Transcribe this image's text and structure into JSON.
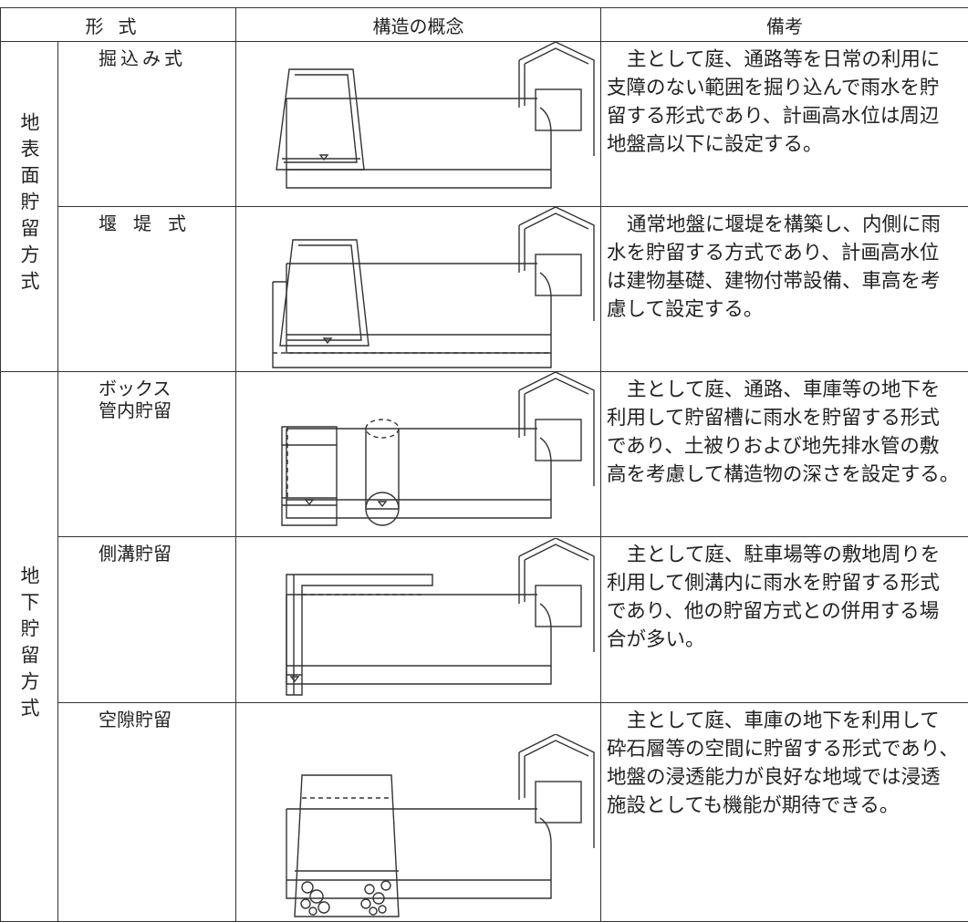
{
  "header": {
    "type": "形式",
    "structure": "構造の概念",
    "remarks": "備考"
  },
  "groups": [
    {
      "label": "地表面貯留方式",
      "rows": [
        {
          "type": [
            "掘込み式"
          ],
          "remarks": [
            "主として庭、通路等を日常の利用に",
            "支障のない範囲を掘り込んで雨水を貯",
            "留する形式であり、計画高水位は周辺",
            "地盤高以下に設定する。"
          ]
        },
        {
          "type": [
            "堰堤式"
          ],
          "remarks": [
            "通常地盤に堰堤を構築し、内側に雨",
            "水を貯留する方式であり、計画高水位",
            "は建物基礎、建物付帯設備、車高を考",
            "慮して設定する。"
          ]
        }
      ]
    },
    {
      "label": "地下貯留方式",
      "rows": [
        {
          "type": [
            "ボックス",
            "管内貯留"
          ],
          "remarks": [
            "主として庭、通路、車庫等の地下を",
            "利用して貯留槽に雨水を貯留する形式",
            "であり、土被りおよび地先排水管の敷",
            "高を考慮して構造物の深さを設定する。"
          ]
        },
        {
          "type": [
            "側溝貯留"
          ],
          "remarks": [
            "主として庭、駐車場等の敷地周りを",
            "利用して側溝内に雨水を貯留する形式",
            "であり、他の貯留方式との併用する場",
            "合が多い。"
          ]
        },
        {
          "type": [
            "空隙貯留"
          ],
          "remarks": [
            "主として庭、車庫の地下を利用して",
            "砕石層等の空間に貯留する形式であり、",
            "地盤の浸透能力が良好な地域では浸透",
            "施設としても機能が期待できる。"
          ]
        }
      ]
    }
  ]
}
